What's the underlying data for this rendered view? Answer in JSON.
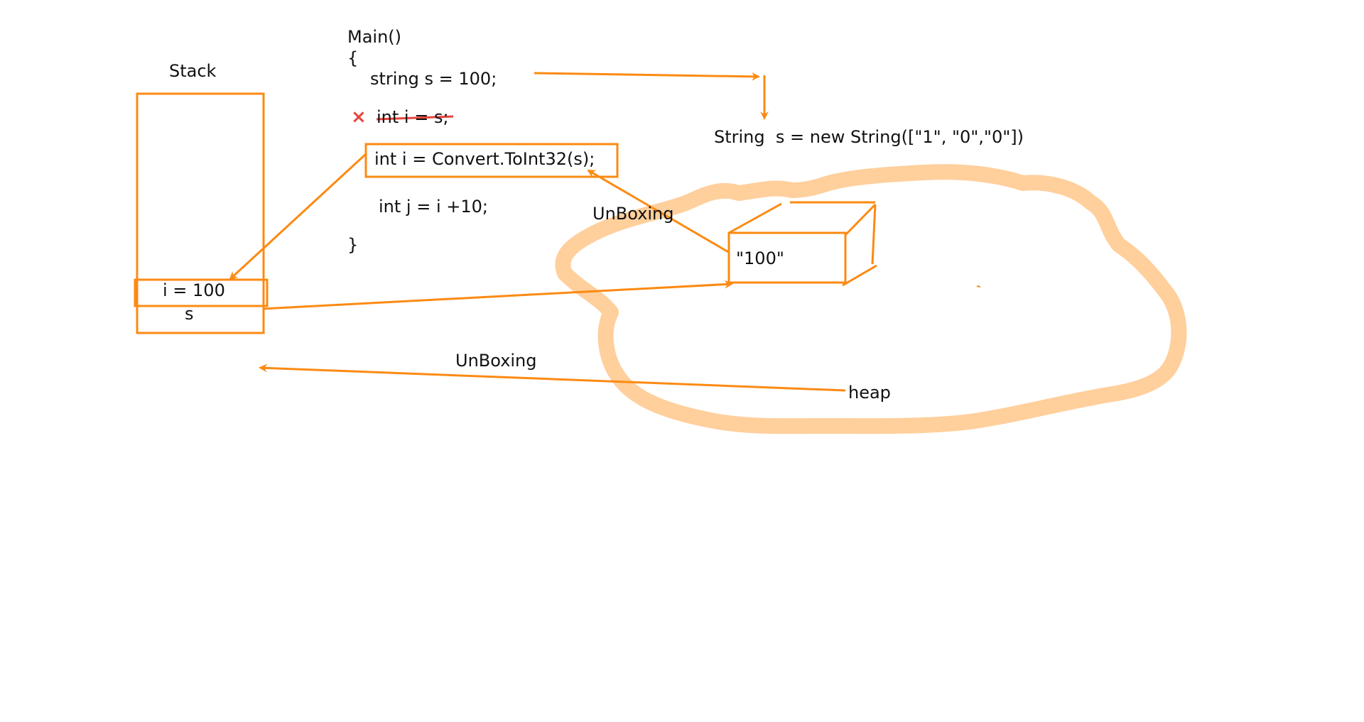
{
  "colors": {
    "ink": "#fc8a12",
    "heap_fill": "#ffcf9c",
    "strike": "#e8433a",
    "text": "#111111",
    "background": "#ffffff"
  },
  "stack": {
    "title": "Stack",
    "cell_i": "i = 100",
    "cell_s": "s"
  },
  "code": {
    "line1": "Main()",
    "line2": "{",
    "line3": "string s = 100;",
    "line4_struck": "int i = s;",
    "line5_boxed": "int i = Convert.ToInt32(s);",
    "line6": "int j = i +10;",
    "line7": "}",
    "error_mark": "×"
  },
  "annotation": {
    "string_ctor": "String  s = new String([\"1\", \"0\",\"0\"])"
  },
  "heap": {
    "label": "heap",
    "box_value": "\"100\""
  },
  "labels": {
    "unboxing_upper": "UnBoxing",
    "unboxing_lower": "UnBoxing"
  }
}
